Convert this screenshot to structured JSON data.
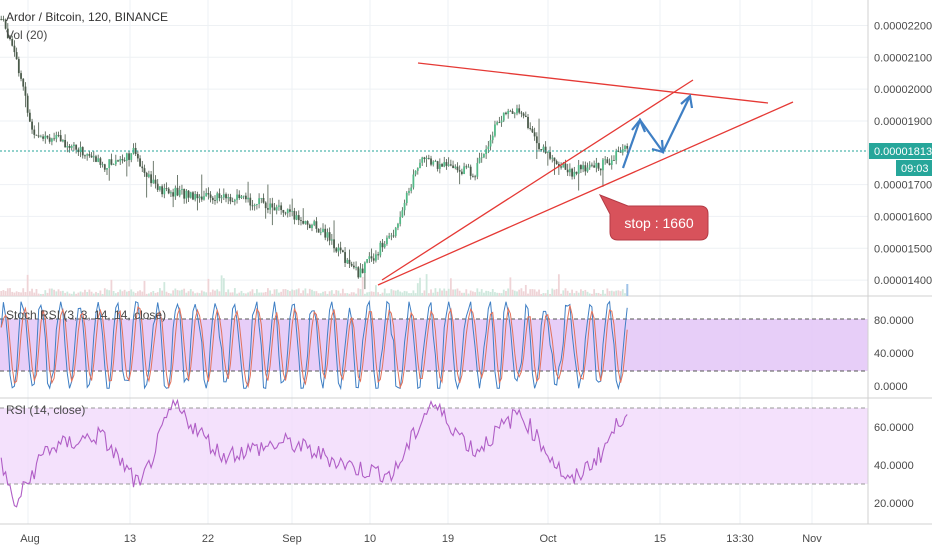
{
  "header": {
    "symbol_line": "Ardor / Bitcoin, 120, BINANCE",
    "vol_label": "Vol (20)"
  },
  "colors": {
    "up": "#53b987",
    "down": "#eb4d5c",
    "candle": "#4a5a4a",
    "trendline": "#e53935",
    "arrow": "#3f7fc4",
    "last_price_bg": "#26a69a",
    "stoch_k": "#3f7fc4",
    "stoch_d": "#e2725b",
    "stoch_band": "#e3c6f7",
    "rsi_line": "#b05ec6",
    "rsi_band": "#f1d9fb",
    "stop_bg": "#d8525b"
  },
  "price_axis": {
    "ticks": [
      {
        "value": 2.2e-05,
        "label": "0.00002200"
      },
      {
        "value": 2.1e-05,
        "label": "0.00002100"
      },
      {
        "value": 2e-05,
        "label": "0.00002000"
      },
      {
        "value": 1.9e-05,
        "label": "0.00001900"
      },
      {
        "value": 1.7e-05,
        "label": "0.00001700"
      },
      {
        "value": 1.6e-05,
        "label": "0.00001600"
      },
      {
        "value": 1.5e-05,
        "label": "0.00001500"
      },
      {
        "value": 1.4e-05,
        "label": "0.00001400"
      }
    ],
    "last_price_label": "0.00001813",
    "countdown_label": "09:03"
  },
  "time_axis": {
    "labels": [
      "Aug",
      "13",
      "22",
      "Sep",
      "10",
      "19",
      "Oct",
      "15",
      "13:30",
      "Nov"
    ]
  },
  "annotation": {
    "stop_text": "stop : 1660"
  },
  "stoch_rsi": {
    "label": "Stoch RSI (3, 3, 14, 14, close)",
    "ticks": [
      "80.0000",
      "40.0000",
      "0.0000"
    ]
  },
  "rsi": {
    "label": "RSI (14, close)",
    "ticks": [
      "60.0000",
      "40.0000",
      "20.0000"
    ]
  },
  "chart_data": {
    "type": "candlestick",
    "price_range": [
      1.35e-05,
      2.28e-05
    ],
    "last_price": 1.813e-05,
    "price_path_keypoints": [
      {
        "t": 0,
        "price": 2.22e-05
      },
      {
        "t": 6,
        "price": 2.13e-05
      },
      {
        "t": 14,
        "price": 1.87e-05
      },
      {
        "t": 30,
        "price": 1.83e-05
      },
      {
        "t": 47,
        "price": 1.76e-05
      },
      {
        "t": 60,
        "price": 1.8e-05
      },
      {
        "t": 72,
        "price": 1.68e-05
      },
      {
        "t": 100,
        "price": 1.66e-05
      },
      {
        "t": 120,
        "price": 1.64e-05
      },
      {
        "t": 145,
        "price": 1.56e-05
      },
      {
        "t": 162,
        "price": 1.42e-05
      },
      {
        "t": 178,
        "price": 1.55e-05
      },
      {
        "t": 190,
        "price": 1.78e-05
      },
      {
        "t": 200,
        "price": 1.76e-05
      },
      {
        "t": 215,
        "price": 1.74e-05
      },
      {
        "t": 225,
        "price": 1.9e-05
      },
      {
        "t": 235,
        "price": 1.94e-05
      },
      {
        "t": 245,
        "price": 1.81e-05
      },
      {
        "t": 258,
        "price": 1.74e-05
      },
      {
        "t": 272,
        "price": 1.76e-05
      },
      {
        "t": 284,
        "price": 1.813e-05
      }
    ],
    "stoch_range": [
      0,
      100
    ],
    "stoch_bands": [
      20,
      80
    ],
    "rsi_range": [
      10,
      75
    ],
    "rsi_bands": [
      30,
      70
    ],
    "rsi_keypoints": [
      {
        "t": 0,
        "rsi": 42
      },
      {
        "t": 6,
        "rsi": 18
      },
      {
        "t": 20,
        "rsi": 48
      },
      {
        "t": 45,
        "rsi": 56
      },
      {
        "t": 63,
        "rsi": 28
      },
      {
        "t": 78,
        "rsi": 72
      },
      {
        "t": 100,
        "rsi": 45
      },
      {
        "t": 130,
        "rsi": 52
      },
      {
        "t": 162,
        "rsi": 38
      },
      {
        "t": 178,
        "rsi": 35
      },
      {
        "t": 195,
        "rsi": 73
      },
      {
        "t": 215,
        "rsi": 47
      },
      {
        "t": 235,
        "rsi": 68
      },
      {
        "t": 258,
        "rsi": 30
      },
      {
        "t": 272,
        "rsi": 46
      },
      {
        "t": 284,
        "rsi": 70
      }
    ]
  }
}
